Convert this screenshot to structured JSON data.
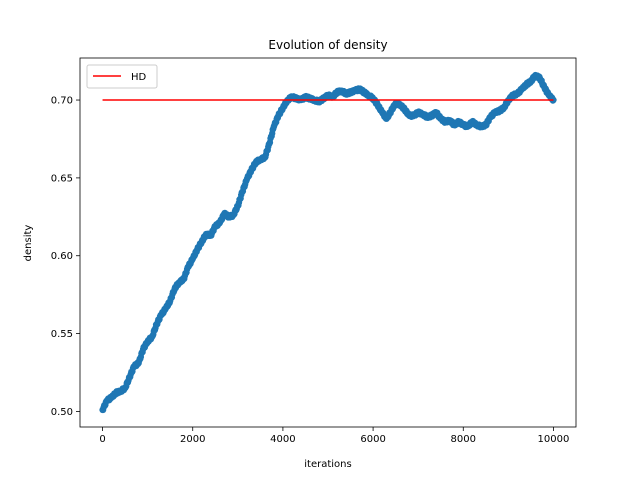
{
  "chart_data": {
    "type": "scatter",
    "title": "Evolution of density",
    "xlabel": "iterations",
    "ylabel": "density",
    "xlim": [
      -500,
      10500
    ],
    "ylim": [
      0.49,
      0.727
    ],
    "xticks": [
      0,
      2000,
      4000,
      6000,
      8000,
      10000
    ],
    "xtick_labels": [
      "0",
      "2000",
      "4000",
      "6000",
      "8000",
      "10000"
    ],
    "yticks": [
      0.5,
      0.55,
      0.6,
      0.65,
      0.7
    ],
    "ytick_labels": [
      "0.50",
      "0.55",
      "0.60",
      "0.65",
      "0.70"
    ],
    "grid": false,
    "legend": {
      "placement": "top-left"
    },
    "series": [
      {
        "kind": "line",
        "name": "HD",
        "color": "#ff0000",
        "x": [
          0,
          10000
        ],
        "y": [
          0.7,
          0.7
        ]
      },
      {
        "kind": "scatter",
        "color": "#1f77b4",
        "x": [
          0,
          100,
          200,
          300,
          400,
          500,
          600,
          700,
          800,
          900,
          1000,
          1100,
          1200,
          1300,
          1400,
          1500,
          1600,
          1700,
          1800,
          1900,
          2000,
          2100,
          2200,
          2300,
          2400,
          2500,
          2600,
          2700,
          2800,
          2900,
          3000,
          3100,
          3200,
          3300,
          3400,
          3500,
          3600,
          3700,
          3800,
          3900,
          4000,
          4100,
          4200,
          4300,
          4400,
          4500,
          4600,
          4700,
          4800,
          4900,
          5000,
          5100,
          5200,
          5300,
          5400,
          5500,
          5600,
          5700,
          5800,
          5900,
          6000,
          6100,
          6200,
          6300,
          6400,
          6500,
          6600,
          6700,
          6800,
          6900,
          7000,
          7100,
          7200,
          7300,
          7400,
          7500,
          7600,
          7700,
          7800,
          7900,
          8000,
          8100,
          8200,
          8300,
          8400,
          8500,
          8600,
          8700,
          8800,
          8900,
          9000,
          9100,
          9200,
          9300,
          9400,
          9500,
          9600,
          9700,
          9800,
          9900,
          10000
        ],
        "y": [
          0.501,
          0.507,
          0.509,
          0.512,
          0.513,
          0.515,
          0.522,
          0.529,
          0.531,
          0.54,
          0.545,
          0.548,
          0.556,
          0.562,
          0.566,
          0.571,
          0.579,
          0.583,
          0.585,
          0.593,
          0.598,
          0.604,
          0.609,
          0.614,
          0.613,
          0.619,
          0.621,
          0.627,
          0.625,
          0.626,
          0.632,
          0.641,
          0.649,
          0.655,
          0.66,
          0.662,
          0.663,
          0.672,
          0.683,
          0.69,
          0.695,
          0.7,
          0.702,
          0.701,
          0.7,
          0.702,
          0.701,
          0.7,
          0.699,
          0.701,
          0.703,
          0.702,
          0.705,
          0.706,
          0.704,
          0.705,
          0.706,
          0.707,
          0.705,
          0.703,
          0.701,
          0.697,
          0.692,
          0.688,
          0.693,
          0.698,
          0.697,
          0.694,
          0.69,
          0.69,
          0.692,
          0.691,
          0.689,
          0.69,
          0.692,
          0.688,
          0.686,
          0.687,
          0.684,
          0.686,
          0.684,
          0.683,
          0.686,
          0.684,
          0.683,
          0.684,
          0.689,
          0.692,
          0.693,
          0.695,
          0.7,
          0.703,
          0.704,
          0.707,
          0.71,
          0.712,
          0.716,
          0.714,
          0.708,
          0.703,
          0.7
        ]
      }
    ]
  }
}
